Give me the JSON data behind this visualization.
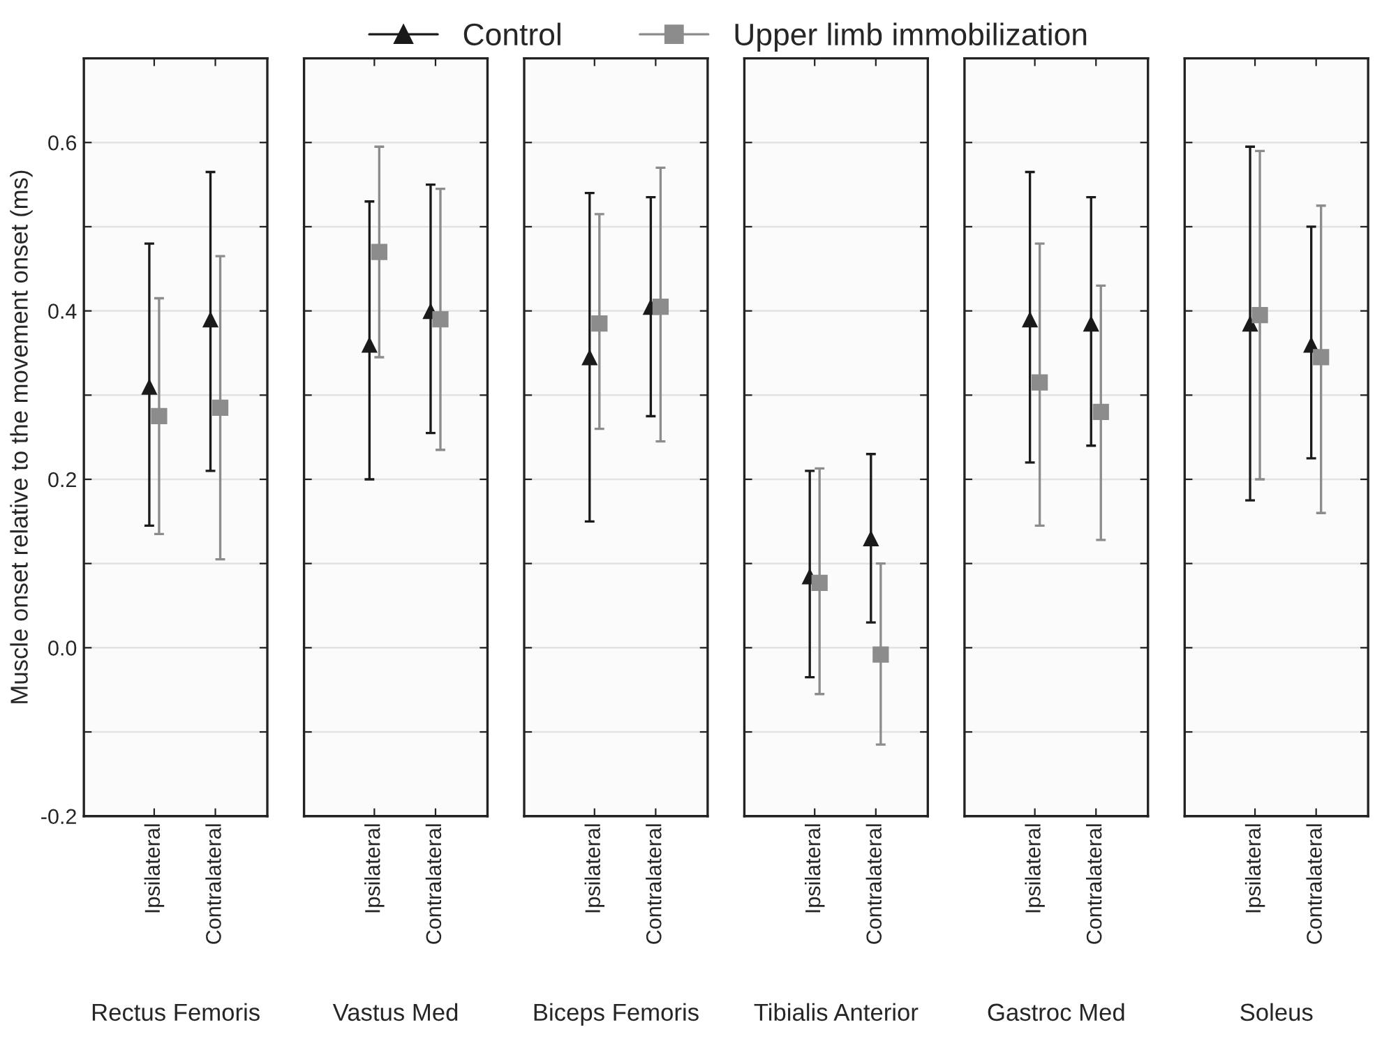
{
  "chart_data": [
    {
      "type": "scatter",
      "xlabel": "Rectus Femoris",
      "ylabel": "Muscle onset relative to the movement onset (ms)",
      "categories": [
        "Ipsilateral",
        "Contralateral"
      ],
      "ylim": [
        -0.2,
        0.7
      ],
      "yticks": [
        -0.2,
        {
          "value": -0.1,
          "label": null
        },
        {
          "value": 0.0,
          "label": "0.0"
        },
        {
          "value": 0.1,
          "label": null
        },
        0.2,
        {
          "value": 0.3,
          "label": null
        },
        0.4,
        {
          "value": 0.5,
          "label": null
        },
        0.6
      ],
      "grid": "y",
      "legend": "top",
      "series": [
        {
          "name": "Control",
          "color": "#1a1a1a",
          "marker": "triangle",
          "values": [
            0.31,
            0.39
          ],
          "errors": [
            [
              0.145,
              0.48
            ],
            [
              0.21,
              0.565
            ]
          ]
        },
        {
          "name": "Upper limb immobilization",
          "color": "#8c8c8c",
          "marker": "square",
          "values": [
            0.275,
            0.285
          ],
          "errors": [
            [
              0.135,
              0.415
            ],
            [
              0.105,
              0.465
            ]
          ]
        }
      ]
    },
    {
      "type": "scatter",
      "xlabel": "Vastus Med",
      "categories": [
        "Ipsilateral",
        "Contralateral"
      ],
      "ylim": [
        -0.2,
        0.7
      ],
      "yticks": [
        {
          "value": -0.2,
          "label": null
        },
        {
          "value": -0.1,
          "label": null
        },
        {
          "value": 0.0,
          "label": null
        },
        {
          "value": 0.1,
          "label": null
        },
        {
          "value": 0.2,
          "label": null
        },
        {
          "value": 0.3,
          "label": null
        },
        {
          "value": 0.4,
          "label": null
        },
        {
          "value": 0.5,
          "label": null
        },
        {
          "value": 0.6,
          "label": null
        }
      ],
      "grid": "y",
      "tick_labels": "x",
      "series": [
        {
          "color": "#1a1a1a",
          "marker": "triangle",
          "values": [
            0.36,
            0.4
          ],
          "errors": [
            [
              0.2,
              0.53
            ],
            [
              0.255,
              0.55
            ]
          ]
        },
        {
          "color": "#8c8c8c",
          "marker": "square",
          "values": [
            0.47,
            0.39
          ],
          "errors": [
            [
              0.345,
              0.595
            ],
            [
              0.235,
              0.545
            ]
          ]
        }
      ]
    },
    {
      "type": "scatter",
      "xlabel": "Biceps Femoris",
      "categories": [
        "Ipsilateral",
        "Contralateral"
      ],
      "ylim": [
        -0.2,
        0.7
      ],
      "yticks": [
        {
          "value": -0.2,
          "label": null
        },
        {
          "value": -0.1,
          "label": null
        },
        {
          "value": 0.0,
          "label": null
        },
        {
          "value": 0.1,
          "label": null
        },
        {
          "value": 0.2,
          "label": null
        },
        {
          "value": 0.3,
          "label": null
        },
        {
          "value": 0.4,
          "label": null
        },
        {
          "value": 0.5,
          "label": null
        },
        {
          "value": 0.6,
          "label": null
        }
      ],
      "grid": "y",
      "tick_labels": "x",
      "series": [
        {
          "color": "#1a1a1a",
          "marker": "triangle",
          "values": [
            0.345,
            0.405
          ],
          "errors": [
            [
              0.15,
              0.54
            ],
            [
              0.275,
              0.535
            ]
          ]
        },
        {
          "color": "#8c8c8c",
          "marker": "square",
          "values": [
            0.385,
            0.405
          ],
          "errors": [
            [
              0.26,
              0.515
            ],
            [
              0.245,
              0.57
            ]
          ]
        }
      ]
    },
    {
      "type": "scatter",
      "xlabel": "Tibialis Anterior",
      "categories": [
        "Ipsilateral",
        "Contralateral"
      ],
      "ylim": [
        -0.2,
        0.7
      ],
      "yticks": [
        {
          "value": -0.2,
          "label": null
        },
        {
          "value": -0.1,
          "label": null
        },
        {
          "value": 0.0,
          "label": null
        },
        {
          "value": 0.1,
          "label": null
        },
        {
          "value": 0.2,
          "label": null
        },
        {
          "value": 0.3,
          "label": null
        },
        {
          "value": 0.4,
          "label": null
        },
        {
          "value": 0.5,
          "label": null
        },
        {
          "value": 0.6,
          "label": null
        }
      ],
      "grid": "y",
      "tick_labels": "x",
      "series": [
        {
          "color": "#1a1a1a",
          "marker": "triangle",
          "values": [
            0.085,
            0.13
          ],
          "errors": [
            [
              -0.035,
              0.21
            ],
            [
              0.03,
              0.23
            ]
          ]
        },
        {
          "color": "#8c8c8c",
          "marker": "square",
          "values": [
            0.077,
            -0.008
          ],
          "errors": [
            [
              -0.055,
              0.213
            ],
            [
              -0.115,
              0.1
            ]
          ]
        }
      ]
    },
    {
      "type": "scatter",
      "xlabel": "Gastroc Med",
      "categories": [
        "Ipsilateral",
        "Contralateral"
      ],
      "ylim": [
        -0.2,
        0.7
      ],
      "yticks": [
        {
          "value": -0.2,
          "label": null
        },
        {
          "value": -0.1,
          "label": null
        },
        {
          "value": 0.0,
          "label": null
        },
        {
          "value": 0.1,
          "label": null
        },
        {
          "value": 0.2,
          "label": null
        },
        {
          "value": 0.3,
          "label": null
        },
        {
          "value": 0.4,
          "label": null
        },
        {
          "value": 0.5,
          "label": null
        },
        {
          "value": 0.6,
          "label": null
        }
      ],
      "grid": "y",
      "tick_labels": "x",
      "series": [
        {
          "color": "#1a1a1a",
          "marker": "triangle",
          "values": [
            0.39,
            0.385
          ],
          "errors": [
            [
              0.22,
              0.565
            ],
            [
              0.24,
              0.535
            ]
          ]
        },
        {
          "color": "#8c8c8c",
          "marker": "square",
          "values": [
            0.315,
            0.28
          ],
          "errors": [
            [
              0.145,
              0.48
            ],
            [
              0.128,
              0.43
            ]
          ]
        }
      ]
    },
    {
      "type": "scatter",
      "xlabel": "Soleus",
      "categories": [
        "Ipsilateral",
        "Contralateral"
      ],
      "ylim": [
        -0.2,
        0.7
      ],
      "yticks": [
        {
          "value": -0.2,
          "label": null
        },
        {
          "value": -0.1,
          "label": null
        },
        {
          "value": 0.0,
          "label": null
        },
        {
          "value": 0.1,
          "label": null
        },
        {
          "value": 0.2,
          "label": null
        },
        {
          "value": 0.3,
          "label": null
        },
        {
          "value": 0.4,
          "label": null
        },
        {
          "value": 0.5,
          "label": null
        },
        {
          "value": 0.6,
          "label": null
        }
      ],
      "grid": "y",
      "tick_labels": "x",
      "series": [
        {
          "color": "#1a1a1a",
          "marker": "triangle",
          "values": [
            0.385,
            0.36
          ],
          "errors": [
            [
              0.175,
              0.595
            ],
            [
              0.225,
              0.5
            ]
          ]
        },
        {
          "color": "#8c8c8c",
          "marker": "square",
          "values": [
            0.395,
            0.345
          ],
          "errors": [
            [
              0.2,
              0.59
            ],
            [
              0.16,
              0.525
            ]
          ]
        }
      ]
    }
  ]
}
